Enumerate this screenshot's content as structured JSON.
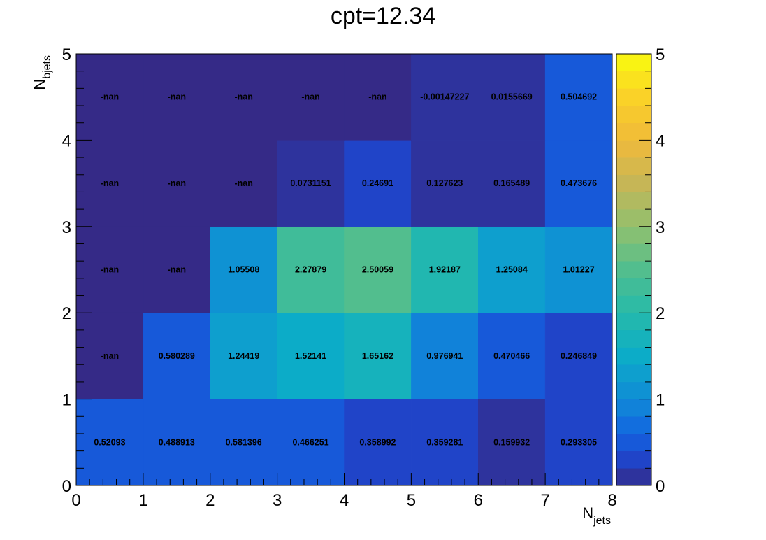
{
  "chart_data": {
    "type": "heatmap",
    "title": "cpt=12.34",
    "xlabel": {
      "main": "N",
      "sub": "jets"
    },
    "ylabel": {
      "main": "N",
      "sub": "bjets"
    },
    "xlim": [
      0,
      8
    ],
    "ylim": [
      0,
      5
    ],
    "x_ticks": [
      "0",
      "1",
      "2",
      "3",
      "4",
      "5",
      "6",
      "7",
      "8"
    ],
    "y_ticks": [
      "0",
      "1",
      "2",
      "3",
      "4",
      "5"
    ],
    "colorbar": {
      "min": 0,
      "max": 5,
      "ticks": [
        "0",
        "1",
        "2",
        "3",
        "4",
        "5"
      ]
    },
    "x_bin_centers": [
      0.5,
      1.5,
      2.5,
      3.5,
      4.5,
      5.5,
      6.5,
      7.5
    ],
    "y_bin_centers": [
      0.5,
      1.5,
      2.5,
      3.5,
      4.5
    ],
    "cell_labels": [
      [
        "0.52093",
        "0.488913",
        "0.581396",
        "0.466251",
        "0.358992",
        "0.359281",
        "0.159932",
        "0.293305"
      ],
      [
        "-nan",
        "0.580289",
        "1.24419",
        "1.52141",
        "1.65162",
        "0.976941",
        "0.470466",
        "0.246849"
      ],
      [
        "-nan",
        "-nan",
        "1.05508",
        "2.27879",
        "2.50059",
        "1.92187",
        "1.25084",
        "1.01227"
      ],
      [
        "-nan",
        "-nan",
        "-nan",
        "0.0731151",
        "0.24691",
        "0.127623",
        "0.165489",
        "0.473676"
      ],
      [
        "-nan",
        "-nan",
        "-nan",
        "-nan",
        "-nan",
        "-0.00147227",
        "0.0155669",
        "0.504692"
      ]
    ]
  }
}
